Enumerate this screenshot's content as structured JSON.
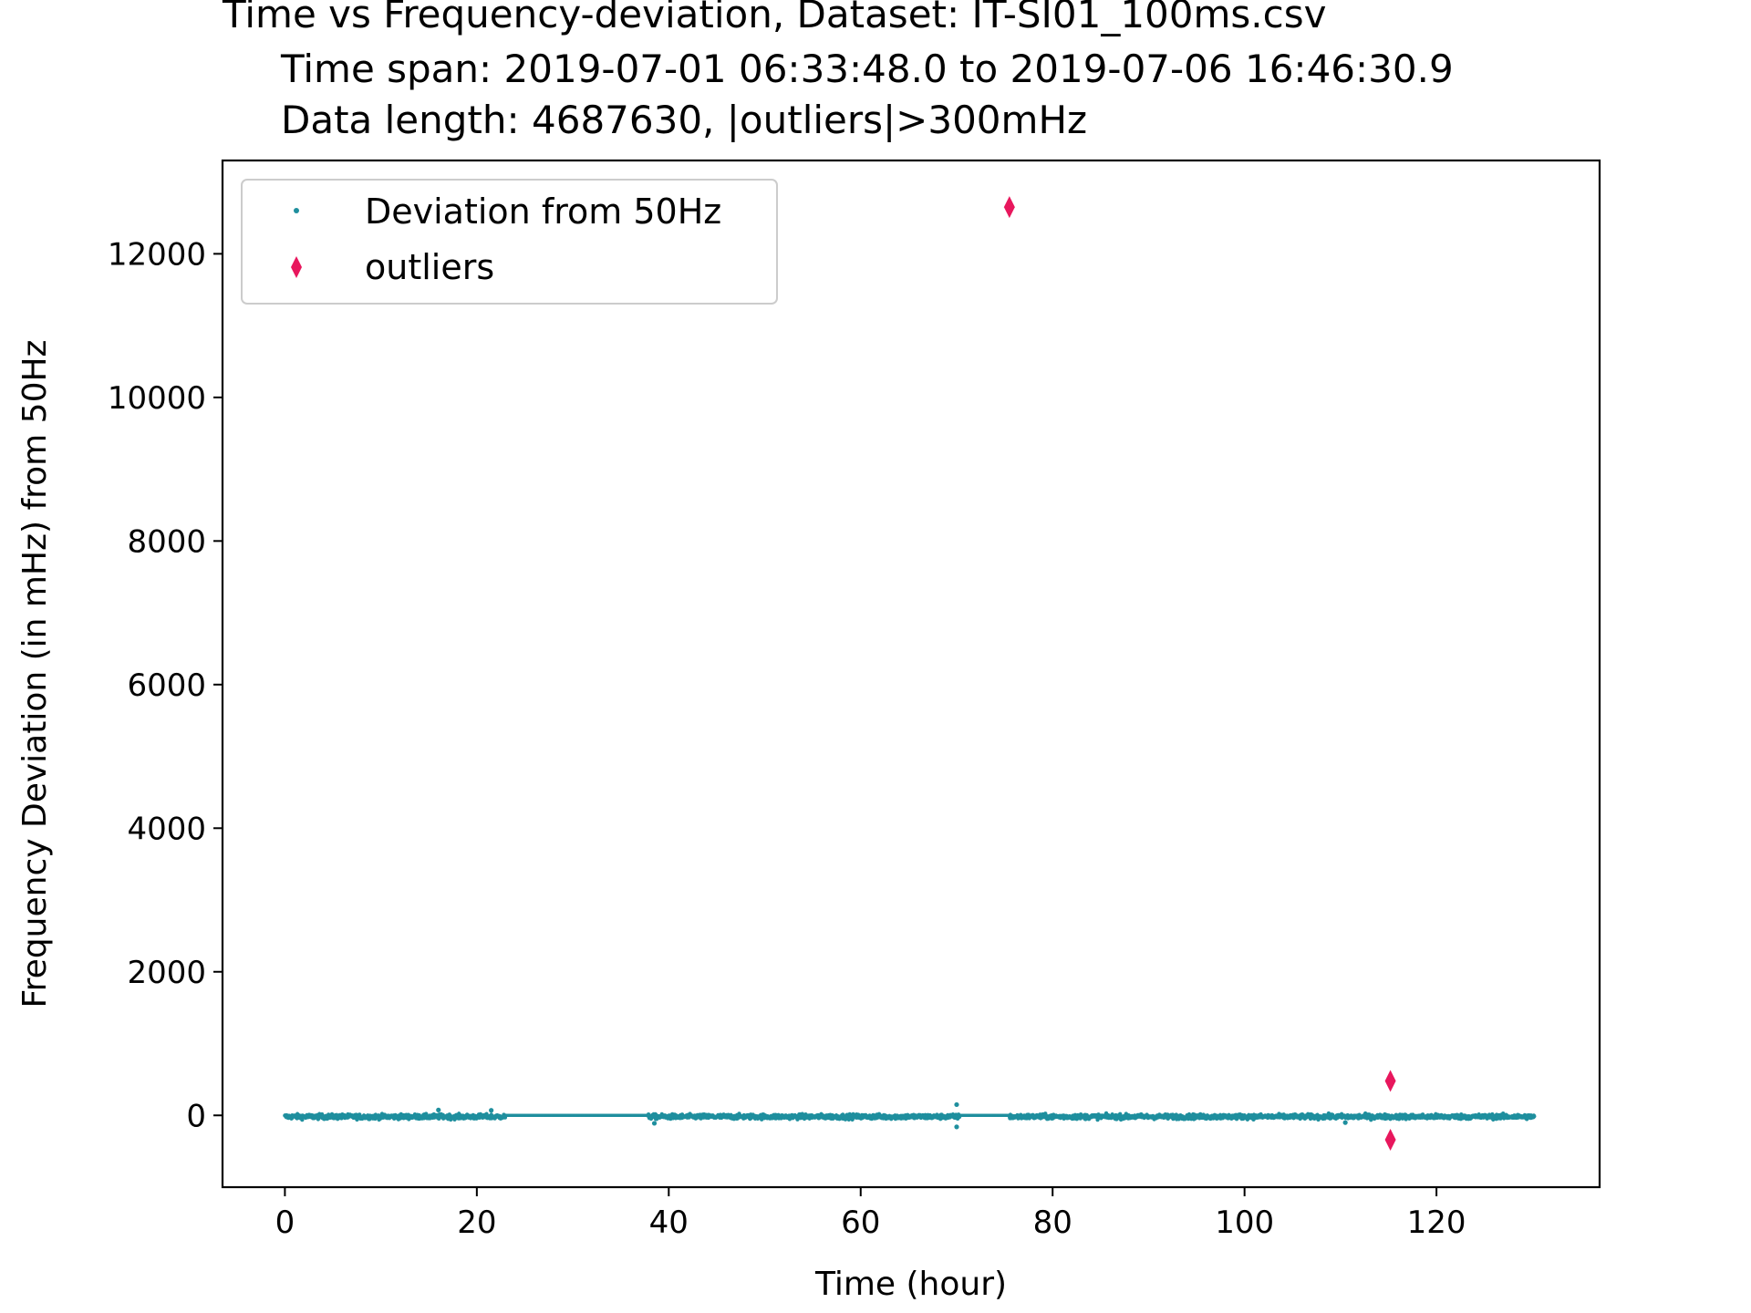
{
  "chart_data": {
    "type": "scatter",
    "title_lines": [
      "Time vs Frequency-deviation, Dataset: IT-SI01_100ms.csv",
      "Time span: 2019-07-01 06:33:48.0 to 2019-07-06 16:46:30.9",
      "Data length: 4687630, |outliers|>300mHz"
    ],
    "xlabel": "Time (hour)",
    "ylabel": "Frequency Deviation (in mHz) from 50Hz",
    "xlim": [
      -6.5,
      137
    ],
    "ylim": [
      -1000,
      13300
    ],
    "x_ticks": [
      0,
      20,
      40,
      60,
      80,
      100,
      120
    ],
    "x_tick_labels": [
      "0",
      "20",
      "40",
      "60",
      "80",
      "100",
      "120"
    ],
    "y_ticks": [
      0,
      2000,
      4000,
      6000,
      8000,
      10000,
      12000
    ],
    "y_tick_labels": [
      "0",
      "2000",
      "4000",
      "6000",
      "8000",
      "10000",
      "12000"
    ],
    "grid": false,
    "legend_position": "top-left",
    "series": [
      {
        "name": "Deviation from 50Hz",
        "marker": "dot",
        "color": "#1f8f9e",
        "gaps_hours": [
          [
            23.0,
            37.8
          ],
          [
            70.3,
            75.5
          ]
        ],
        "x_range": [
          0,
          130.2
        ],
        "typical_band_mHz": [
          -60,
          80
        ],
        "notable_points": [
          {
            "x": 16,
            "y": 75
          },
          {
            "x": 21.5,
            "y": 70
          },
          {
            "x": 38.5,
            "y": -110
          },
          {
            "x": 70,
            "y": 150
          },
          {
            "x": 70,
            "y": -160
          },
          {
            "x": 110.5,
            "y": -100
          }
        ]
      },
      {
        "name": "outliers",
        "marker": "thin_diamond",
        "color": "#e8175d",
        "points": [
          {
            "x": 75.5,
            "y": 12650
          },
          {
            "x": 115.2,
            "y": 480
          },
          {
            "x": 115.2,
            "y": -340
          }
        ]
      }
    ]
  }
}
